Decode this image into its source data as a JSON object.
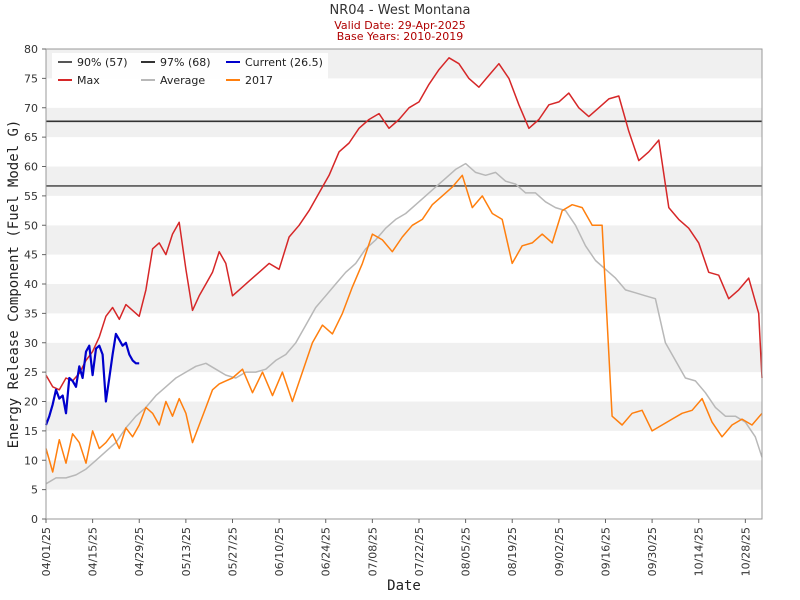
{
  "header": {
    "title": "NR04 - West Montana",
    "valid_date": "Valid Date: 29-Apr-2025",
    "base_years": "Base Years: 2010-2019"
  },
  "chart_data": {
    "type": "line",
    "title": "NR04 - West Montana",
    "subtitle": [
      "Valid Date: 29-Apr-2025",
      "Base Years: 2010-2019"
    ],
    "xlabel": "Date",
    "ylabel": "Energy Release Component (Fuel Model G)",
    "x_range": [
      "2025-04-01",
      "2025-11-02"
    ],
    "ylim": [
      0,
      80
    ],
    "yticks": [
      0,
      5,
      10,
      15,
      20,
      25,
      30,
      35,
      40,
      45,
      50,
      55,
      60,
      65,
      70,
      75,
      80
    ],
    "xticks": [
      "04/01/25",
      "04/15/25",
      "04/29/25",
      "05/13/25",
      "05/27/25",
      "06/10/25",
      "06/24/25",
      "07/08/25",
      "07/22/25",
      "08/05/25",
      "08/19/25",
      "09/02/25",
      "09/16/25",
      "09/30/25",
      "10/14/25",
      "10/28/25"
    ],
    "grid": "horizontal alternating bands",
    "legend_position": "top-left",
    "thresholds": [
      {
        "name": "90% (57)",
        "value": 56.7,
        "color": "#555555"
      },
      {
        "name": "97% (68)",
        "value": 67.7,
        "color": "#333333"
      }
    ],
    "series": [
      {
        "name": "Max",
        "color": "#d62728",
        "x": [
          "2025-04-01",
          "2025-04-03",
          "2025-04-05",
          "2025-04-07",
          "2025-04-09",
          "2025-04-11",
          "2025-04-13",
          "2025-04-15",
          "2025-04-17",
          "2025-04-19",
          "2025-04-21",
          "2025-04-23",
          "2025-04-25",
          "2025-04-27",
          "2025-04-29",
          "2025-05-01",
          "2025-05-03",
          "2025-05-05",
          "2025-05-07",
          "2025-05-09",
          "2025-05-11",
          "2025-05-13",
          "2025-05-15",
          "2025-05-17",
          "2025-05-19",
          "2025-05-21",
          "2025-05-23",
          "2025-05-25",
          "2025-05-27",
          "2025-05-29",
          "2025-06-01",
          "2025-06-04",
          "2025-06-07",
          "2025-06-10",
          "2025-06-13",
          "2025-06-16",
          "2025-06-19",
          "2025-06-22",
          "2025-06-25",
          "2025-06-28",
          "2025-07-01",
          "2025-07-04",
          "2025-07-07",
          "2025-07-10",
          "2025-07-13",
          "2025-07-16",
          "2025-07-19",
          "2025-07-22",
          "2025-07-25",
          "2025-07-28",
          "2025-07-31",
          "2025-08-03",
          "2025-08-06",
          "2025-08-09",
          "2025-08-12",
          "2025-08-15",
          "2025-08-18",
          "2025-08-21",
          "2025-08-24",
          "2025-08-27",
          "2025-08-30",
          "2025-09-02",
          "2025-09-05",
          "2025-09-08",
          "2025-09-11",
          "2025-09-14",
          "2025-09-17",
          "2025-09-20",
          "2025-09-23",
          "2025-09-26",
          "2025-09-29",
          "2025-10-02",
          "2025-10-05",
          "2025-10-08",
          "2025-10-11",
          "2025-10-14",
          "2025-10-17",
          "2025-10-20",
          "2025-10-23",
          "2025-10-26",
          "2025-10-29",
          "2025-11-01",
          "2025-11-02"
        ],
        "values": [
          24.5,
          22.5,
          22.0,
          24.0,
          23.5,
          24.8,
          27.0,
          28.5,
          31.0,
          34.5,
          36.0,
          34.0,
          36.5,
          35.5,
          34.5,
          39.0,
          46.0,
          47.0,
          45.0,
          48.5,
          50.5,
          42.5,
          35.5,
          38.0,
          40.0,
          42.0,
          45.5,
          43.5,
          38.0,
          39.0,
          40.5,
          42.0,
          43.5,
          42.5,
          48.0,
          50.0,
          52.5,
          55.5,
          58.5,
          62.5,
          64.0,
          66.5,
          68.0,
          69.0,
          66.5,
          68.0,
          70.0,
          71.0,
          74.0,
          76.5,
          78.5,
          77.5,
          75.0,
          73.5,
          75.5,
          77.5,
          75.0,
          70.5,
          66.5,
          68.0,
          70.5,
          71.0,
          72.5,
          70.0,
          68.5,
          70.0,
          71.5,
          72.0,
          66.0,
          61.0,
          62.5,
          64.5,
          53.0,
          51.0,
          49.5,
          47.0,
          42.0,
          41.5,
          37.5,
          39.0,
          41.0,
          35.0,
          24.0
        ]
      },
      {
        "name": "Average",
        "color": "#b8b8b8",
        "x": [
          "2025-04-01",
          "2025-04-04",
          "2025-04-07",
          "2025-04-10",
          "2025-04-13",
          "2025-04-16",
          "2025-04-19",
          "2025-04-22",
          "2025-04-25",
          "2025-04-28",
          "2025-05-01",
          "2025-05-04",
          "2025-05-07",
          "2025-05-10",
          "2025-05-13",
          "2025-05-16",
          "2025-05-19",
          "2025-05-22",
          "2025-05-25",
          "2025-05-28",
          "2025-05-31",
          "2025-06-03",
          "2025-06-06",
          "2025-06-09",
          "2025-06-12",
          "2025-06-15",
          "2025-06-18",
          "2025-06-21",
          "2025-06-24",
          "2025-06-27",
          "2025-06-30",
          "2025-07-03",
          "2025-07-06",
          "2025-07-09",
          "2025-07-12",
          "2025-07-15",
          "2025-07-18",
          "2025-07-21",
          "2025-07-24",
          "2025-07-27",
          "2025-07-30",
          "2025-08-02",
          "2025-08-05",
          "2025-08-08",
          "2025-08-11",
          "2025-08-14",
          "2025-08-17",
          "2025-08-20",
          "2025-08-23",
          "2025-08-26",
          "2025-08-29",
          "2025-09-01",
          "2025-09-04",
          "2025-09-07",
          "2025-09-10",
          "2025-09-13",
          "2025-09-16",
          "2025-09-19",
          "2025-09-22",
          "2025-09-25",
          "2025-09-28",
          "2025-10-01",
          "2025-10-04",
          "2025-10-07",
          "2025-10-10",
          "2025-10-13",
          "2025-10-16",
          "2025-10-19",
          "2025-10-22",
          "2025-10-25",
          "2025-10-28",
          "2025-10-31",
          "2025-11-02"
        ],
        "values": [
          6.0,
          7.0,
          7.0,
          7.5,
          8.5,
          10.0,
          11.5,
          13.0,
          15.5,
          17.5,
          19.0,
          21.0,
          22.5,
          24.0,
          25.0,
          26.0,
          26.5,
          25.5,
          24.5,
          24.0,
          25.0,
          25.0,
          25.5,
          27.0,
          28.0,
          30.0,
          33.0,
          36.0,
          38.0,
          40.0,
          42.0,
          43.5,
          46.0,
          47.5,
          49.5,
          51.0,
          52.0,
          53.5,
          55.0,
          56.5,
          58.0,
          59.5,
          60.5,
          59.0,
          58.5,
          59.0,
          57.5,
          57.0,
          55.5,
          55.5,
          54.0,
          53.0,
          52.5,
          50.0,
          46.5,
          44.0,
          42.5,
          41.0,
          39.0,
          38.5,
          38.0,
          37.5,
          30.0,
          27.0,
          24.0,
          23.5,
          21.5,
          19.0,
          17.5,
          17.5,
          16.5,
          14.0,
          10.5
        ]
      },
      {
        "name": "2017",
        "color": "#ff7f0e",
        "x": [
          "2025-04-01",
          "2025-04-03",
          "2025-04-05",
          "2025-04-07",
          "2025-04-09",
          "2025-04-11",
          "2025-04-13",
          "2025-04-15",
          "2025-04-17",
          "2025-04-19",
          "2025-04-21",
          "2025-04-23",
          "2025-04-25",
          "2025-04-27",
          "2025-04-29",
          "2025-05-01",
          "2025-05-03",
          "2025-05-05",
          "2025-05-07",
          "2025-05-09",
          "2025-05-11",
          "2025-05-13",
          "2025-05-15",
          "2025-05-17",
          "2025-05-19",
          "2025-05-21",
          "2025-05-23",
          "2025-05-25",
          "2025-05-27",
          "2025-05-30",
          "2025-06-02",
          "2025-06-05",
          "2025-06-08",
          "2025-06-11",
          "2025-06-14",
          "2025-06-17",
          "2025-06-20",
          "2025-06-23",
          "2025-06-26",
          "2025-06-29",
          "2025-07-02",
          "2025-07-05",
          "2025-07-08",
          "2025-07-11",
          "2025-07-14",
          "2025-07-17",
          "2025-07-20",
          "2025-07-23",
          "2025-07-26",
          "2025-07-29",
          "2025-08-01",
          "2025-08-04",
          "2025-08-07",
          "2025-08-10",
          "2025-08-13",
          "2025-08-16",
          "2025-08-19",
          "2025-08-22",
          "2025-08-25",
          "2025-08-28",
          "2025-08-31",
          "2025-09-03",
          "2025-09-06",
          "2025-09-09",
          "2025-09-12",
          "2025-09-15",
          "2025-09-18",
          "2025-09-21",
          "2025-09-24",
          "2025-09-27",
          "2025-09-30",
          "2025-10-03",
          "2025-10-06",
          "2025-10-09",
          "2025-10-12",
          "2025-10-15",
          "2025-10-18",
          "2025-10-21",
          "2025-10-24",
          "2025-10-27",
          "2025-10-30",
          "2025-11-02"
        ],
        "values": [
          12.0,
          8.0,
          13.5,
          9.5,
          14.5,
          13.0,
          9.5,
          15.0,
          12.0,
          13.0,
          14.5,
          12.0,
          15.5,
          14.0,
          16.0,
          19.0,
          18.0,
          16.0,
          20.0,
          17.5,
          20.5,
          18.0,
          13.0,
          16.0,
          19.0,
          22.0,
          23.0,
          23.5,
          24.0,
          25.5,
          21.5,
          25.0,
          21.0,
          25.0,
          20.0,
          25.0,
          30.0,
          33.0,
          31.5,
          35.0,
          39.5,
          43.5,
          48.5,
          47.5,
          45.5,
          48.0,
          50.0,
          51.0,
          53.5,
          55.0,
          56.5,
          58.5,
          53.0,
          55.0,
          52.0,
          51.0,
          43.5,
          46.5,
          47.0,
          48.5,
          47.0,
          52.5,
          53.5,
          53.0,
          50.0,
          50.0,
          17.5,
          16.0,
          18.0,
          18.5,
          15.0,
          16.0,
          17.0,
          18.0,
          18.5,
          20.5,
          16.5,
          14.0,
          16.0,
          17.0,
          16.0,
          18.0
        ]
      },
      {
        "name": "Current (26.5)",
        "color": "#0000cc",
        "x": [
          "2025-04-01",
          "2025-04-02",
          "2025-04-03",
          "2025-04-04",
          "2025-04-05",
          "2025-04-06",
          "2025-04-07",
          "2025-04-08",
          "2025-04-09",
          "2025-04-10",
          "2025-04-11",
          "2025-04-12",
          "2025-04-13",
          "2025-04-14",
          "2025-04-15",
          "2025-04-16",
          "2025-04-17",
          "2025-04-18",
          "2025-04-19",
          "2025-04-20",
          "2025-04-21",
          "2025-04-22",
          "2025-04-23",
          "2025-04-24",
          "2025-04-25",
          "2025-04-26",
          "2025-04-27",
          "2025-04-28",
          "2025-04-29"
        ],
        "values": [
          16.0,
          17.5,
          19.5,
          22.0,
          20.5,
          21.0,
          18.0,
          24.0,
          23.5,
          22.5,
          26.0,
          24.0,
          28.5,
          29.5,
          24.5,
          29.0,
          29.5,
          28.0,
          20.0,
          24.0,
          28.0,
          31.5,
          30.5,
          29.5,
          30.0,
          28.0,
          27.0,
          26.5,
          26.5
        ]
      }
    ]
  }
}
